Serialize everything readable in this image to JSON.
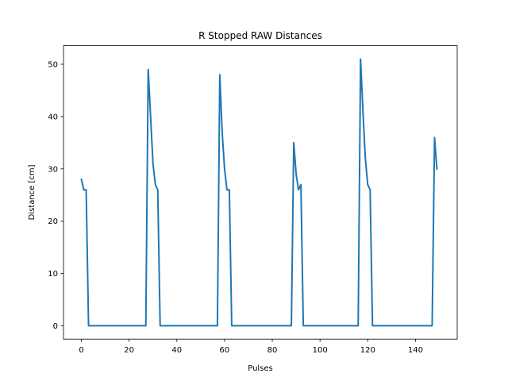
{
  "chart_data": {
    "type": "line",
    "title": "R Stopped RAW Distances",
    "xlabel": "Pulses",
    "ylabel": "Distance [cm]",
    "xlim": [
      -7.5,
      157.5
    ],
    "ylim": [
      -2.55,
      53.55
    ],
    "xticks": [
      0,
      20,
      40,
      60,
      80,
      100,
      120,
      140
    ],
    "yticks": [
      0,
      10,
      20,
      30,
      40,
      50
    ],
    "grid": false,
    "legend": "none",
    "series": [
      {
        "color": "#1f77b4",
        "x": [
          0,
          1,
          2,
          3,
          27,
          28,
          29,
          30,
          31,
          32,
          33,
          57,
          58,
          59,
          60,
          61,
          62,
          63,
          88,
          89,
          90,
          91,
          92,
          93,
          116,
          117,
          118,
          119,
          120,
          121,
          122,
          147,
          148,
          149
        ],
        "y": [
          28,
          26,
          26,
          0,
          0,
          49,
          40,
          31,
          27,
          26,
          0,
          0,
          48,
          37,
          30,
          26,
          26,
          0,
          0,
          35,
          29,
          26,
          27,
          0,
          0,
          51,
          41,
          32,
          27,
          26,
          0,
          0,
          36,
          30
        ]
      }
    ]
  }
}
